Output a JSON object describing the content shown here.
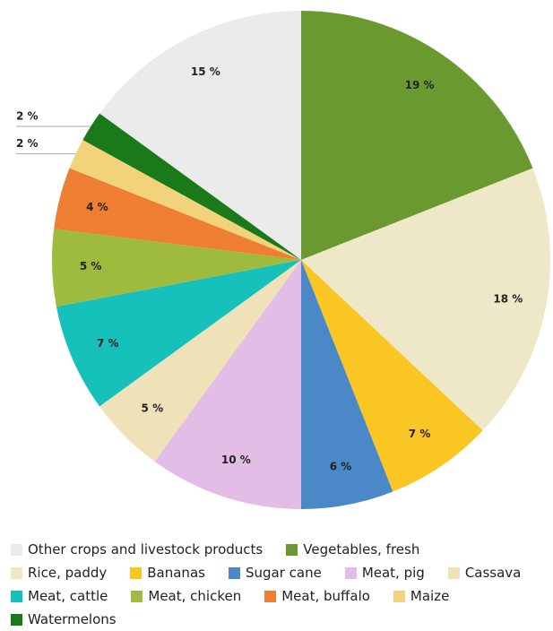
{
  "chart_data": {
    "type": "pie",
    "categories": [
      "Other crops and livestock products",
      "Vegetables, fresh",
      "Rice, paddy",
      "Bananas",
      "Sugar cane",
      "Meat, pig",
      "Cassava",
      "Meat, cattle",
      "Meat, chicken",
      "Meat, buffalo",
      "Maize",
      "Watermelons"
    ],
    "values": [
      15,
      19,
      18,
      7,
      6,
      10,
      5,
      7,
      5,
      4,
      2,
      2
    ],
    "value_labels": [
      "15 %",
      "19 %",
      "18 %",
      "7 %",
      "6 %",
      "10 %",
      "5 %",
      "7 %",
      "5 %",
      "4 %",
      "2 %",
      "2 %"
    ],
    "colors": [
      "#ebebeb",
      "#6a9a2f",
      "#efe8c8",
      "#f9c623",
      "#4a88c8",
      "#e2bde6",
      "#efe2b8",
      "#17c1bb",
      "#9fbb3d",
      "#ee7f32",
      "#f2d37c",
      "#1a7a1a"
    ],
    "legend": "bottom"
  }
}
